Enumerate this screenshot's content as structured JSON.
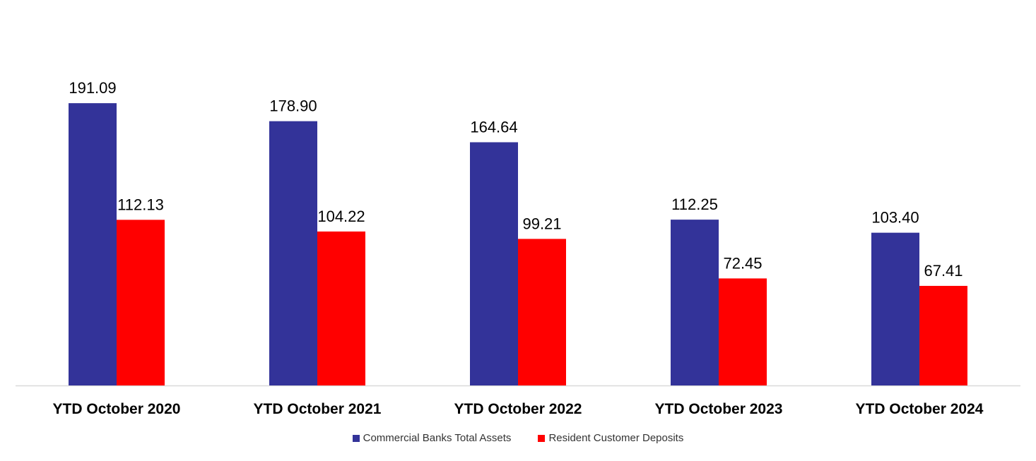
{
  "chart_data": {
    "type": "bar",
    "title": "",
    "xlabel": "",
    "ylabel": "",
    "categories": [
      "YTD October 2020",
      "YTD October 2021",
      "YTD October 2022",
      "YTD October 2023",
      "YTD October 2024"
    ],
    "series": [
      {
        "name": "Commercial Banks Total Assets",
        "color": "#333399",
        "values": [
          191.09,
          178.9,
          164.64,
          112.25,
          103.4
        ],
        "labels": [
          "191.09",
          "178.90",
          "164.64",
          "112.25",
          "103.40"
        ]
      },
      {
        "name": "Resident Customer Deposits",
        "color": "#ff0000",
        "values": [
          112.13,
          104.22,
          99.21,
          72.45,
          67.41
        ],
        "labels": [
          "112.13",
          "104.22",
          "99.21",
          "72.45",
          "67.41"
        ]
      }
    ],
    "ylim": [
      0,
      200
    ],
    "grid": false,
    "legend_position": "bottom"
  }
}
